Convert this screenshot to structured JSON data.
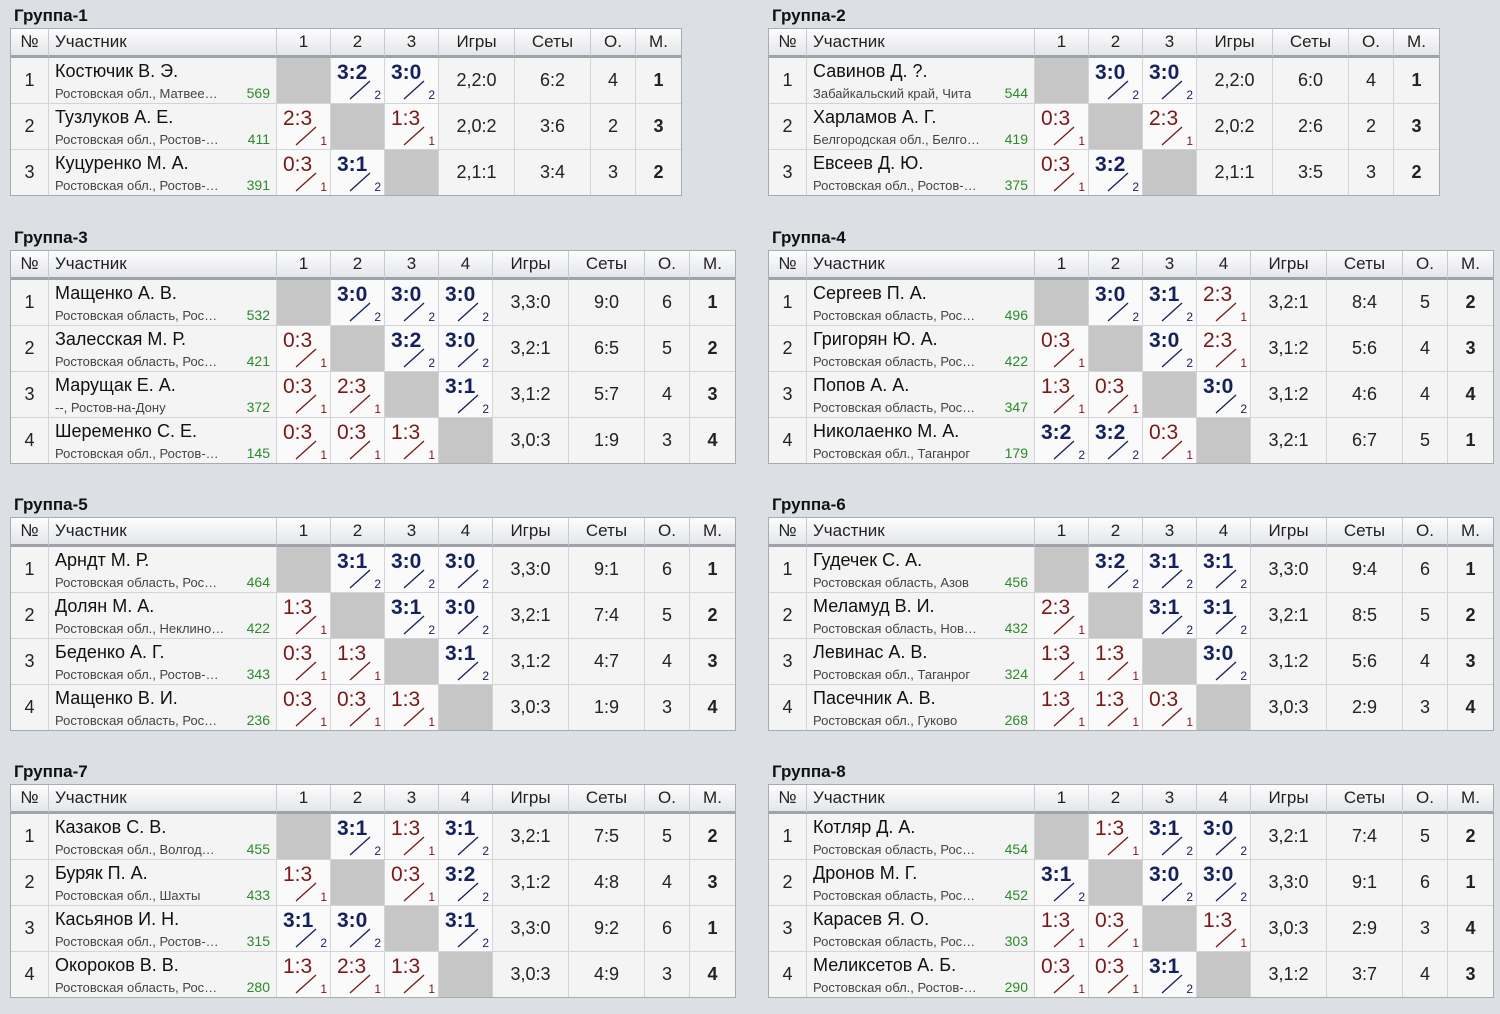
{
  "headers": {
    "num": "№",
    "participant": "Участник",
    "games": "Игры",
    "sets": "Сеты",
    "points": "О.",
    "place": "М."
  },
  "groups": [
    {
      "title": "Группа-1",
      "rows": [
        {
          "n": "1",
          "name": "Костючик В. Э.",
          "region": "Ростовская обл., Матвее…",
          "rating": "569",
          "res": [
            null,
            {
              "s": "3:2",
              "t": "2",
              "w": true
            },
            {
              "s": "3:0",
              "t": "2",
              "w": true
            }
          ],
          "games": "2,2:0",
          "sets": "6:2",
          "points": "4",
          "place": "1"
        },
        {
          "n": "2",
          "name": "Тузлуков А. Е.",
          "region": "Ростовская обл., Ростов-…",
          "rating": "411",
          "res": [
            {
              "s": "2:3",
              "t": "1",
              "w": false
            },
            null,
            {
              "s": "1:3",
              "t": "1",
              "w": false
            }
          ],
          "games": "2,0:2",
          "sets": "3:6",
          "points": "2",
          "place": "3"
        },
        {
          "n": "3",
          "name": "Куцуренко М. А.",
          "region": "Ростовская обл., Ростов-…",
          "rating": "391",
          "res": [
            {
              "s": "0:3",
              "t": "1",
              "w": false
            },
            {
              "s": "3:1",
              "t": "2",
              "w": true
            },
            null
          ],
          "games": "2,1:1",
          "sets": "3:4",
          "points": "3",
          "place": "2"
        }
      ]
    },
    {
      "title": "Группа-2",
      "rows": [
        {
          "n": "1",
          "name": "Савинов Д. ?.",
          "region": "Забайкальский край, Чита",
          "rating": "544",
          "res": [
            null,
            {
              "s": "3:0",
              "t": "2",
              "w": true
            },
            {
              "s": "3:0",
              "t": "2",
              "w": true
            }
          ],
          "games": "2,2:0",
          "sets": "6:0",
          "points": "4",
          "place": "1"
        },
        {
          "n": "2",
          "name": "Харламов А. Г.",
          "region": "Белгородская обл., Белго…",
          "rating": "419",
          "res": [
            {
              "s": "0:3",
              "t": "1",
              "w": false
            },
            null,
            {
              "s": "2:3",
              "t": "1",
              "w": false
            }
          ],
          "games": "2,0:2",
          "sets": "2:6",
          "points": "2",
          "place": "3"
        },
        {
          "n": "3",
          "name": "Евсеев Д. Ю.",
          "region": "Ростовская обл., Ростов-…",
          "rating": "375",
          "res": [
            {
              "s": "0:3",
              "t": "1",
              "w": false
            },
            {
              "s": "3:2",
              "t": "2",
              "w": true
            },
            null
          ],
          "games": "2,1:1",
          "sets": "3:5",
          "points": "3",
          "place": "2"
        }
      ]
    },
    {
      "title": "Группа-3",
      "rows": [
        {
          "n": "1",
          "name": "Мащенко А. В.",
          "region": "Ростовская область, Рос…",
          "rating": "532",
          "res": [
            null,
            {
              "s": "3:0",
              "t": "2",
              "w": true
            },
            {
              "s": "3:0",
              "t": "2",
              "w": true
            },
            {
              "s": "3:0",
              "t": "2",
              "w": true
            }
          ],
          "games": "3,3:0",
          "sets": "9:0",
          "points": "6",
          "place": "1"
        },
        {
          "n": "2",
          "name": "Залесская М. Р.",
          "region": "Ростовская область, Рос…",
          "rating": "421",
          "res": [
            {
              "s": "0:3",
              "t": "1",
              "w": false
            },
            null,
            {
              "s": "3:2",
              "t": "2",
              "w": true
            },
            {
              "s": "3:0",
              "t": "2",
              "w": true
            }
          ],
          "games": "3,2:1",
          "sets": "6:5",
          "points": "5",
          "place": "2"
        },
        {
          "n": "3",
          "name": "Марущак Е. А.",
          "region": "--, Ростов-на-Дону",
          "rating": "372",
          "res": [
            {
              "s": "0:3",
              "t": "1",
              "w": false
            },
            {
              "s": "2:3",
              "t": "1",
              "w": false
            },
            null,
            {
              "s": "3:1",
              "t": "2",
              "w": true
            }
          ],
          "games": "3,1:2",
          "sets": "5:7",
          "points": "4",
          "place": "3"
        },
        {
          "n": "4",
          "name": "Шеременко С. Е.",
          "region": "Ростовская обл., Ростов-…",
          "rating": "145",
          "res": [
            {
              "s": "0:3",
              "t": "1",
              "w": false
            },
            {
              "s": "0:3",
              "t": "1",
              "w": false
            },
            {
              "s": "1:3",
              "t": "1",
              "w": false
            },
            null
          ],
          "games": "3,0:3",
          "sets": "1:9",
          "points": "3",
          "place": "4"
        }
      ]
    },
    {
      "title": "Группа-4",
      "rows": [
        {
          "n": "1",
          "name": "Сергеев П. А.",
          "region": "Ростовская область, Рос…",
          "rating": "496",
          "res": [
            null,
            {
              "s": "3:0",
              "t": "2",
              "w": true
            },
            {
              "s": "3:1",
              "t": "2",
              "w": true
            },
            {
              "s": "2:3",
              "t": "1",
              "w": false
            }
          ],
          "games": "3,2:1",
          "sets": "8:4",
          "points": "5",
          "place": "2"
        },
        {
          "n": "2",
          "name": "Григорян Ю. А.",
          "region": "Ростовская область, Рос…",
          "rating": "422",
          "res": [
            {
              "s": "0:3",
              "t": "1",
              "w": false
            },
            null,
            {
              "s": "3:0",
              "t": "2",
              "w": true
            },
            {
              "s": "2:3",
              "t": "1",
              "w": false
            }
          ],
          "games": "3,1:2",
          "sets": "5:6",
          "points": "4",
          "place": "3"
        },
        {
          "n": "3",
          "name": "Попов А. А.",
          "region": "Ростовская область, Рос…",
          "rating": "347",
          "res": [
            {
              "s": "1:3",
              "t": "1",
              "w": false
            },
            {
              "s": "0:3",
              "t": "1",
              "w": false
            },
            null,
            {
              "s": "3:0",
              "t": "2",
              "w": true
            }
          ],
          "games": "3,1:2",
          "sets": "4:6",
          "points": "4",
          "place": "4"
        },
        {
          "n": "4",
          "name": "Николаенко М. А.",
          "region": "Ростовская обл., Таганрог",
          "rating": "179",
          "res": [
            {
              "s": "3:2",
              "t": "2",
              "w": true
            },
            {
              "s": "3:2",
              "t": "2",
              "w": true
            },
            {
              "s": "0:3",
              "t": "1",
              "w": false
            },
            null
          ],
          "games": "3,2:1",
          "sets": "6:7",
          "points": "5",
          "place": "1"
        }
      ]
    },
    {
      "title": "Группа-5",
      "rows": [
        {
          "n": "1",
          "name": "Арндт М. Р.",
          "region": "Ростовская область, Рос…",
          "rating": "464",
          "res": [
            null,
            {
              "s": "3:1",
              "t": "2",
              "w": true
            },
            {
              "s": "3:0",
              "t": "2",
              "w": true
            },
            {
              "s": "3:0",
              "t": "2",
              "w": true
            }
          ],
          "games": "3,3:0",
          "sets": "9:1",
          "points": "6",
          "place": "1"
        },
        {
          "n": "2",
          "name": "Долян М. А.",
          "region": "Ростовская обл., Неклино…",
          "rating": "422",
          "res": [
            {
              "s": "1:3",
              "t": "1",
              "w": false
            },
            null,
            {
              "s": "3:1",
              "t": "2",
              "w": true
            },
            {
              "s": "3:0",
              "t": "2",
              "w": true
            }
          ],
          "games": "3,2:1",
          "sets": "7:4",
          "points": "5",
          "place": "2"
        },
        {
          "n": "3",
          "name": "Беденко А. Г.",
          "region": "Ростовская обл., Ростов-…",
          "rating": "343",
          "res": [
            {
              "s": "0:3",
              "t": "1",
              "w": false
            },
            {
              "s": "1:3",
              "t": "1",
              "w": false
            },
            null,
            {
              "s": "3:1",
              "t": "2",
              "w": true
            }
          ],
          "games": "3,1:2",
          "sets": "4:7",
          "points": "4",
          "place": "3"
        },
        {
          "n": "4",
          "name": "Мащенко В. И.",
          "region": "Ростовская область, Рос…",
          "rating": "236",
          "res": [
            {
              "s": "0:3",
              "t": "1",
              "w": false
            },
            {
              "s": "0:3",
              "t": "1",
              "w": false
            },
            {
              "s": "1:3",
              "t": "1",
              "w": false
            },
            null
          ],
          "games": "3,0:3",
          "sets": "1:9",
          "points": "3",
          "place": "4"
        }
      ]
    },
    {
      "title": "Группа-6",
      "rows": [
        {
          "n": "1",
          "name": "Гудечек С. А.",
          "region": "Ростовская область, Азов",
          "rating": "456",
          "res": [
            null,
            {
              "s": "3:2",
              "t": "2",
              "w": true
            },
            {
              "s": "3:1",
              "t": "2",
              "w": true
            },
            {
              "s": "3:1",
              "t": "2",
              "w": true
            }
          ],
          "games": "3,3:0",
          "sets": "9:4",
          "points": "6",
          "place": "1"
        },
        {
          "n": "2",
          "name": "Меламуд В. И.",
          "region": "Ростовская область, Нов…",
          "rating": "432",
          "res": [
            {
              "s": "2:3",
              "t": "1",
              "w": false
            },
            null,
            {
              "s": "3:1",
              "t": "2",
              "w": true
            },
            {
              "s": "3:1",
              "t": "2",
              "w": true
            }
          ],
          "games": "3,2:1",
          "sets": "8:5",
          "points": "5",
          "place": "2"
        },
        {
          "n": "3",
          "name": "Левинас А. В.",
          "region": "Ростовская обл., Таганрог",
          "rating": "324",
          "res": [
            {
              "s": "1:3",
              "t": "1",
              "w": false
            },
            {
              "s": "1:3",
              "t": "1",
              "w": false
            },
            null,
            {
              "s": "3:0",
              "t": "2",
              "w": true
            }
          ],
          "games": "3,1:2",
          "sets": "5:6",
          "points": "4",
          "place": "3"
        },
        {
          "n": "4",
          "name": "Пасечник А. В.",
          "region": "Ростовская обл., Гуково",
          "rating": "268",
          "res": [
            {
              "s": "1:3",
              "t": "1",
              "w": false
            },
            {
              "s": "1:3",
              "t": "1",
              "w": false
            },
            {
              "s": "0:3",
              "t": "1",
              "w": false
            },
            null
          ],
          "games": "3,0:3",
          "sets": "2:9",
          "points": "3",
          "place": "4"
        }
      ]
    },
    {
      "title": "Группа-7",
      "rows": [
        {
          "n": "1",
          "name": "Казаков С. В.",
          "region": "Ростовская обл., Волгод…",
          "rating": "455",
          "res": [
            null,
            {
              "s": "3:1",
              "t": "2",
              "w": true
            },
            {
              "s": "1:3",
              "t": "1",
              "w": false
            },
            {
              "s": "3:1",
              "t": "2",
              "w": true
            }
          ],
          "games": "3,2:1",
          "sets": "7:5",
          "points": "5",
          "place": "2"
        },
        {
          "n": "2",
          "name": "Буряк П. А.",
          "region": "Ростовская обл., Шахты",
          "rating": "433",
          "res": [
            {
              "s": "1:3",
              "t": "1",
              "w": false
            },
            null,
            {
              "s": "0:3",
              "t": "1",
              "w": false
            },
            {
              "s": "3:2",
              "t": "2",
              "w": true
            }
          ],
          "games": "3,1:2",
          "sets": "4:8",
          "points": "4",
          "place": "3"
        },
        {
          "n": "3",
          "name": "Касьянов И. Н.",
          "region": "Ростовская обл., Ростов-…",
          "rating": "315",
          "res": [
            {
              "s": "3:1",
              "t": "2",
              "w": true
            },
            {
              "s": "3:0",
              "t": "2",
              "w": true
            },
            null,
            {
              "s": "3:1",
              "t": "2",
              "w": true
            }
          ],
          "games": "3,3:0",
          "sets": "9:2",
          "points": "6",
          "place": "1"
        },
        {
          "n": "4",
          "name": "Окороков В. В.",
          "region": "Ростовская область, Рос…",
          "rating": "280",
          "res": [
            {
              "s": "1:3",
              "t": "1",
              "w": false
            },
            {
              "s": "2:3",
              "t": "1",
              "w": false
            },
            {
              "s": "1:3",
              "t": "1",
              "w": false
            },
            null
          ],
          "games": "3,0:3",
          "sets": "4:9",
          "points": "3",
          "place": "4"
        }
      ]
    },
    {
      "title": "Группа-8",
      "rows": [
        {
          "n": "1",
          "name": "Котляр Д. А.",
          "region": "Ростовская область, Рос…",
          "rating": "454",
          "res": [
            null,
            {
              "s": "1:3",
              "t": "1",
              "w": false
            },
            {
              "s": "3:1",
              "t": "2",
              "w": true
            },
            {
              "s": "3:0",
              "t": "2",
              "w": true
            }
          ],
          "games": "3,2:1",
          "sets": "7:4",
          "points": "5",
          "place": "2"
        },
        {
          "n": "2",
          "name": "Дронов М. Г.",
          "region": "Ростовская область, Рос…",
          "rating": "452",
          "res": [
            {
              "s": "3:1",
              "t": "2",
              "w": true
            },
            null,
            {
              "s": "3:0",
              "t": "2",
              "w": true
            },
            {
              "s": "3:0",
              "t": "2",
              "w": true
            }
          ],
          "games": "3,3:0",
          "sets": "9:1",
          "points": "6",
          "place": "1"
        },
        {
          "n": "3",
          "name": "Карасев Я. О.",
          "region": "Ростовская область, Рос…",
          "rating": "303",
          "res": [
            {
              "s": "1:3",
              "t": "1",
              "w": false
            },
            {
              "s": "0:3",
              "t": "1",
              "w": false
            },
            null,
            {
              "s": "1:3",
              "t": "1",
              "w": false
            }
          ],
          "games": "3,0:3",
          "sets": "2:9",
          "points": "3",
          "place": "4"
        },
        {
          "n": "4",
          "name": "Меликсетов А. Б.",
          "region": "Ростовская обл., Ростов-…",
          "rating": "290",
          "res": [
            {
              "s": "0:3",
              "t": "1",
              "w": false
            },
            {
              "s": "0:3",
              "t": "1",
              "w": false
            },
            {
              "s": "3:1",
              "t": "2",
              "w": true
            },
            null
          ],
          "games": "3,1:2",
          "sets": "3:7",
          "points": "4",
          "place": "3"
        }
      ]
    }
  ]
}
